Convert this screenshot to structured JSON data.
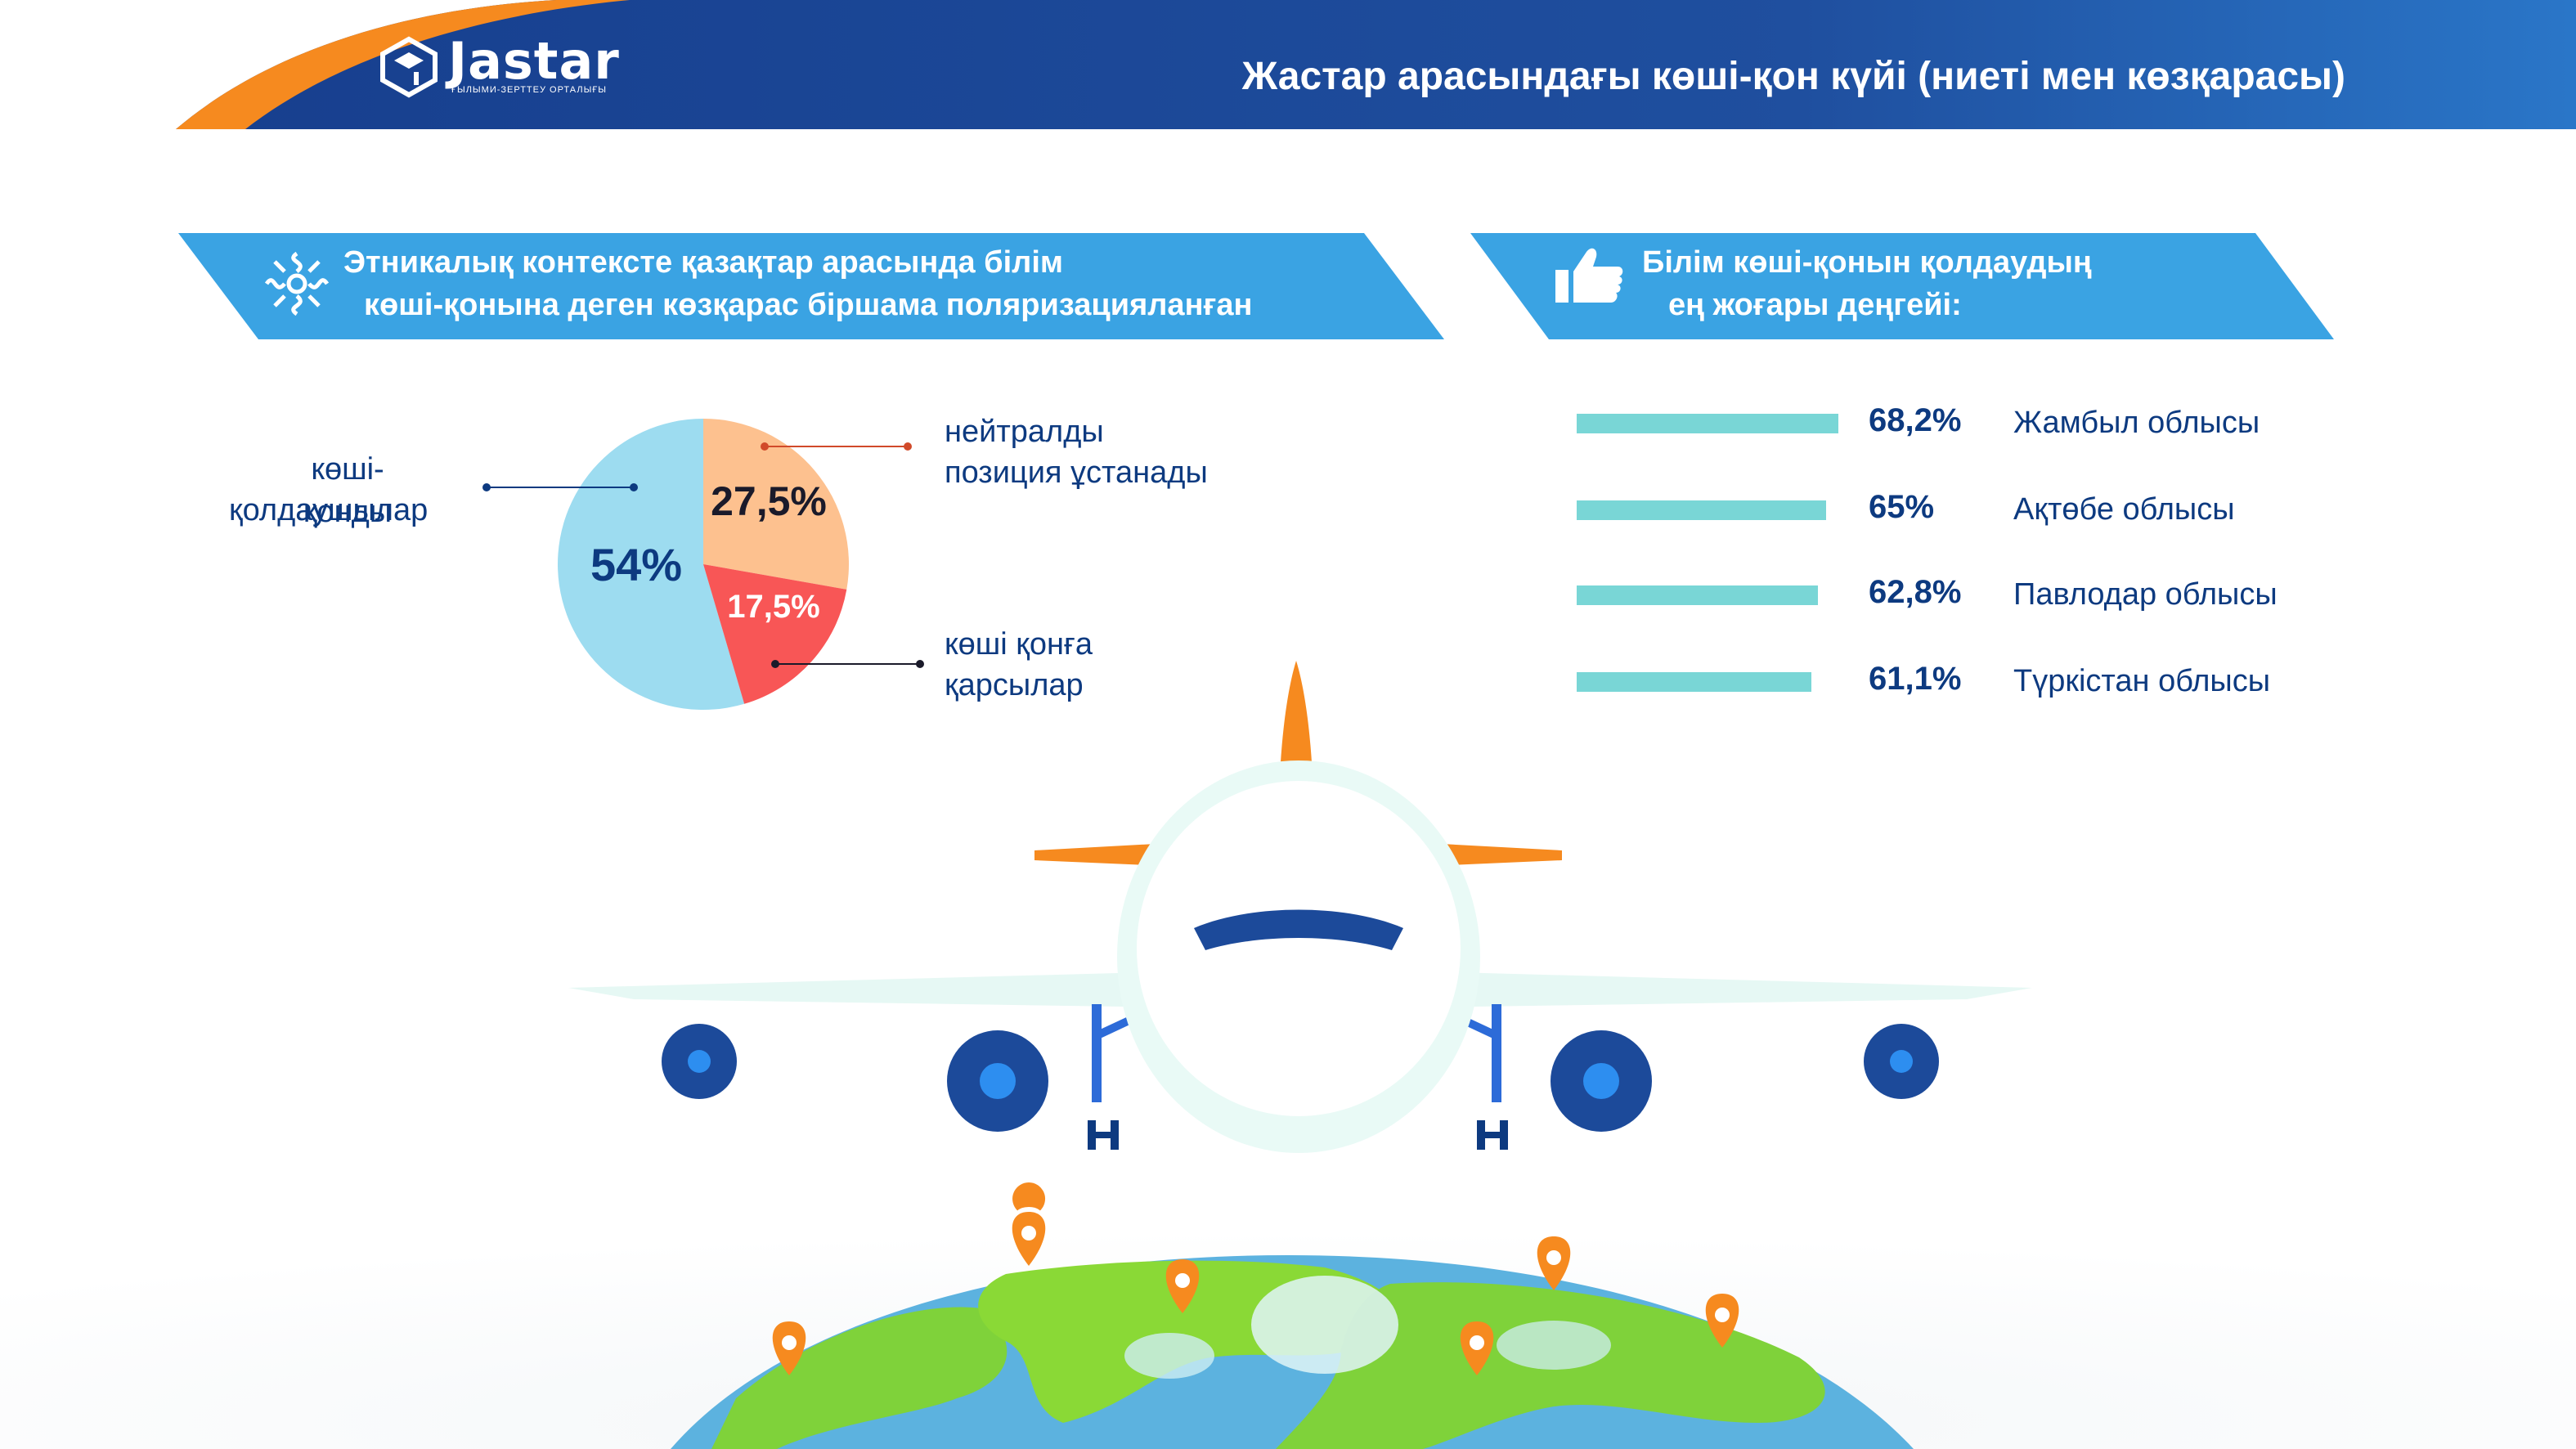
{
  "header": {
    "logo_text": "Jastar",
    "logo_subtitle": "ҒЫЛЫМИ-ЗЕРТТЕУ ОРТАЛЫҒЫ",
    "title": "Жастар арасындағы көші-қон күйі (ниеті мен көзқарасы)"
  },
  "left_banner": {
    "line1": "Этникалық контексте қазақтар арасында білім",
    "line2": "көші-қонына деген көзқарас біршама поляризацияланған",
    "icon": "ornament-icon"
  },
  "right_banner": {
    "line1": "Білім көші-қонын қолдаудың",
    "line2": "ең жоғары деңгейі:",
    "icon": "thumbs-up-icon"
  },
  "pie": {
    "slices": [
      {
        "label": "көші-қонды қолдаушылар",
        "line1": "көші-қонды",
        "line2": "қолдаушылар",
        "value": 54,
        "display": "54%",
        "color": "#9ddcf0"
      },
      {
        "label": "нейтралды позиция ұстанады",
        "line1": "нейтралды",
        "line2": "позиция ұстанады",
        "value": 27.5,
        "display": "27,5%",
        "color": "#fdc18f"
      },
      {
        "label": "көші қонға қарсылар",
        "line1": "көші қонға",
        "line2": "қарсылар",
        "value": 17.5,
        "display": "17,5%",
        "color": "#f85656"
      }
    ]
  },
  "regions": [
    {
      "pct": "68,2%",
      "value": 68.2,
      "name": "Жамбыл облысы"
    },
    {
      "pct": "65%",
      "value": 65,
      "name": "Ақтөбе облысы"
    },
    {
      "pct": "62,8%",
      "value": 62.8,
      "name": "Павлодар облысы"
    },
    {
      "pct": "61,1%",
      "value": 61.1,
      "name": "Түркістан облысы"
    }
  ],
  "colors": {
    "header_blue": "#1c4a9a",
    "accent_orange": "#f68a1f",
    "banner_blue": "#3aa3e3",
    "text_navy": "#0d3a80",
    "bar_teal": "#79d6d6"
  }
}
